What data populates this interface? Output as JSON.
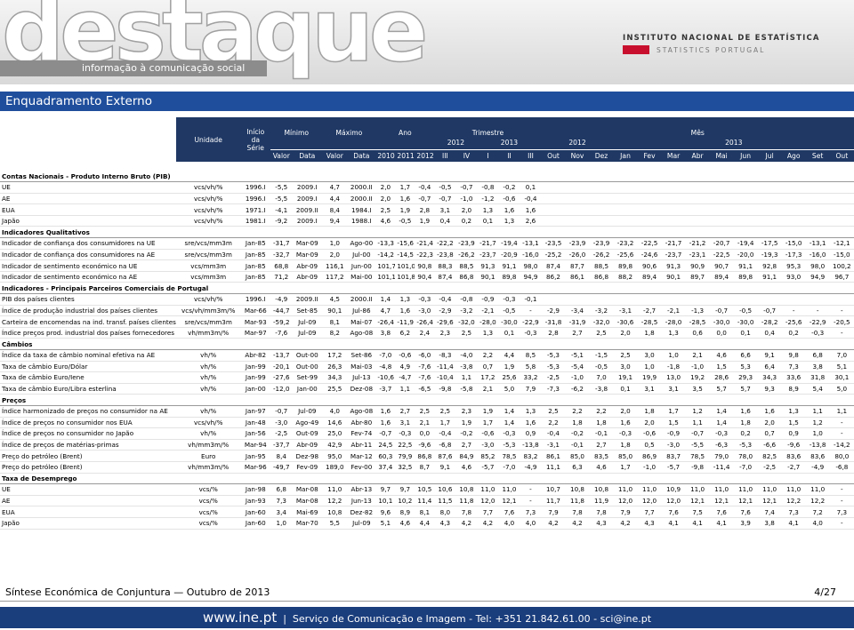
{
  "header": {
    "logo": "destaque",
    "tagline": "informação à comunicação social",
    "institute": "INSTITUTO NACIONAL DE ESTATÍSTICA",
    "institute_en": "STATISTICS PORTUGAL"
  },
  "title": "Enquadramento Externo",
  "table": {
    "head": {
      "unit": "Unidade",
      "start": "Início da Série",
      "min": "Mínimo",
      "max": "Máximo",
      "year": "Ano",
      "quarter": "Trimestre",
      "month": "Mês",
      "quarter_years": [
        "2012",
        "2013"
      ],
      "month_years": [
        "2012",
        "2013"
      ],
      "sub": [
        "Valor",
        "Data",
        "Valor",
        "Data",
        "2010",
        "2011",
        "2012",
        "III",
        "IV",
        "I",
        "II",
        "III",
        "Out",
        "Nov",
        "Dez",
        "Jan",
        "Fev",
        "Mar",
        "Abr",
        "Mai",
        "Jun",
        "Jul",
        "Ago",
        "Set",
        "Out"
      ]
    },
    "sections": [
      {
        "title": "Contas Nacionais - Produto Interno Bruto (PIB)",
        "rows": [
          [
            "UE",
            "vcs/vh/%",
            "1996.I",
            "-5,5",
            "2009.I",
            "4,7",
            "2000.II",
            "2,0",
            "1,7",
            "-0,4",
            "-0,5",
            "-0,7",
            "-0,8",
            "-0,2",
            "0,1"
          ],
          [
            "AE",
            "vcs/vh/%",
            "1996.I",
            "-5,5",
            "2009.I",
            "4,4",
            "2000.II",
            "2,0",
            "1,6",
            "-0,7",
            "-0,7",
            "-1,0",
            "-1,2",
            "-0,6",
            "-0,4"
          ],
          [
            "EUA",
            "vcs/vh/%",
            "1971.I",
            "-4,1",
            "2009.II",
            "8,4",
            "1984.I",
            "2,5",
            "1,9",
            "2,8",
            "3,1",
            "2,0",
            "1,3",
            "1,6",
            "1,6"
          ],
          [
            "Japão",
            "vcs/vh/%",
            "1981.I",
            "-9,2",
            "2009.I",
            "9,4",
            "1988.I",
            "4,6",
            "-0,5",
            "1,9",
            "0,4",
            "0,2",
            "0,1",
            "1,3",
            "2,6"
          ]
        ]
      },
      {
        "title": "Indicadores Qualitativos",
        "rows": [
          [
            "Indicador de confiança dos consumidores na UE",
            "sre/vcs/mm3m",
            "Jan-85",
            "-31,7",
            "Mar-09",
            "1,0",
            "Ago-00",
            "-13,3",
            "-15,6",
            "-21,4",
            "-22,2",
            "-23,9",
            "-21,7",
            "-19,4",
            "-13,1",
            "-23,5",
            "-23,9",
            "-23,9",
            "-23,2",
            "-22,5",
            "-21,7",
            "-21,2",
            "-20,7",
            "-19,4",
            "-17,5",
            "-15,0",
            "-13,1",
            "-12,1"
          ],
          [
            "Indicador de confiança dos consumidores na AE",
            "sre/vcs/mm3m",
            "Jan-85",
            "-32,7",
            "Mar-09",
            "2,0",
            "Jul-00",
            "-14,2",
            "-14,5",
            "-22,3",
            "-23,8",
            "-26,2",
            "-23,7",
            "-20,9",
            "-16,0",
            "-25,2",
            "-26,0",
            "-26,2",
            "-25,6",
            "-24,6",
            "-23,7",
            "-23,1",
            "-22,5",
            "-20,0",
            "-19,3",
            "-17,3",
            "-16,0",
            "-15,0"
          ],
          [
            "Indicador de sentimento económico na UE",
            "vcs/mm3m",
            "Jan-85",
            "68,8",
            "Abr-09",
            "116,1",
            "Jun-00",
            "101,7",
            "101,0",
            "90,8",
            "88,3",
            "88,5",
            "91,3",
            "91,1",
            "98,0",
            "87,4",
            "87,7",
            "88,5",
            "89,8",
            "90,6",
            "91,3",
            "90,9",
            "90,7",
            "91,1",
            "92,8",
            "95,3",
            "98,0",
            "100,2"
          ],
          [
            "Indicador de sentimento económico na AE",
            "vcs/mm3m",
            "Jan-85",
            "71,2",
            "Abr-09",
            "117,2",
            "Mai-00",
            "101,1",
            "101,8",
            "90,4",
            "87,4",
            "86,8",
            "90,1",
            "89,8",
            "94,9",
            "86,2",
            "86,1",
            "86,8",
            "88,2",
            "89,4",
            "90,1",
            "89,7",
            "89,4",
            "89,8",
            "91,1",
            "93,0",
            "94,9",
            "96,7"
          ]
        ]
      },
      {
        "title": "Indicadores - Principais Parceiros Comerciais de Portugal",
        "rows": [
          [
            "PIB dos países clientes",
            "vcs/vh/%",
            "1996.I",
            "-4,9",
            "2009.II",
            "4,5",
            "2000.II",
            "1,4",
            "1,3",
            "-0,3",
            "-0,4",
            "-0,8",
            "-0,9",
            "-0,3",
            "-0,1"
          ],
          [
            "Índice de produção industrial dos países clientes",
            "vcs/vh/mm3m/%",
            "Mar-66",
            "-44,7",
            "Set-85",
            "90,1",
            "Jul-86",
            "4,7",
            "1,6",
            "-3,0",
            "-2,9",
            "-3,2",
            "-2,1",
            "-0,5",
            "-",
            "-2,9",
            "-3,4",
            "-3,2",
            "-3,1",
            "-2,7",
            "-2,1",
            "-1,3",
            "-0,7",
            "-0,5",
            "-0,7",
            "-",
            "-",
            "-"
          ],
          [
            "Carteira de encomendas na ind. transf. países clientes",
            "sre/vcs/mm3m",
            "Mar-93",
            "-59,2",
            "Jul-09",
            "8,1",
            "Mai-07",
            "-26,4",
            "-11,9",
            "-26,4",
            "-29,6",
            "-32,0",
            "-28,0",
            "-30,0",
            "-22,9",
            "-31,8",
            "-31,9",
            "-32,0",
            "-30,6",
            "-28,5",
            "-28,0",
            "-28,5",
            "-30,0",
            "-30,0",
            "-28,2",
            "-25,6",
            "-22,9",
            "-20,5"
          ],
          [
            "Índice preços prod. industrial dos países fornecedores",
            "vh/mm3m/%",
            "Mar-97",
            "-7,6",
            "Jul-09",
            "8,2",
            "Ago-08",
            "3,8",
            "6,2",
            "2,4",
            "2,3",
            "2,5",
            "1,3",
            "0,1",
            "-0,3",
            "2,8",
            "2,7",
            "2,5",
            "2,0",
            "1,8",
            "1,3",
            "0,6",
            "0,0",
            "0,1",
            "0,4",
            "0,2",
            "-0,3",
            "-"
          ]
        ]
      },
      {
        "title": "Câmbios",
        "rows": [
          [
            "Índice da taxa de câmbio nominal efetiva na AE",
            "vh/%",
            "Abr-82",
            "-13,7",
            "Out-00",
            "17,2",
            "Set-86",
            "-7,0",
            "-0,6",
            "-6,0",
            "-8,3",
            "-4,0",
            "2,2",
            "4,4",
            "8,5",
            "-5,3",
            "-5,1",
            "-1,5",
            "2,5",
            "3,0",
            "1,0",
            "2,1",
            "4,6",
            "6,6",
            "9,1",
            "9,8",
            "6,8",
            "7,0"
          ],
          [
            "Taxa de câmbio Euro/Dólar",
            "vh/%",
            "Jan-99",
            "-20,1",
            "Out-00",
            "26,3",
            "Mai-03",
            "-4,8",
            "4,9",
            "-7,6",
            "-11,4",
            "-3,8",
            "0,7",
            "1,9",
            "5,8",
            "-5,3",
            "-5,4",
            "-0,5",
            "3,0",
            "1,0",
            "-1,8",
            "-1,0",
            "1,5",
            "5,3",
            "6,4",
            "7,3",
            "3,8",
            "5,1"
          ],
          [
            "Taxa de câmbio Euro/Iene",
            "vh/%",
            "Jan-99",
            "-27,6",
            "Set-99",
            "34,3",
            "Jul-13",
            "-10,6",
            "-4,7",
            "-7,6",
            "-10,4",
            "1,1",
            "17,2",
            "25,6",
            "33,2",
            "-2,5",
            "-1,0",
            "7,0",
            "19,1",
            "19,9",
            "13,0",
            "19,2",
            "28,6",
            "29,3",
            "34,3",
            "33,6",
            "31,8",
            "30,1"
          ],
          [
            "Taxa de câmbio Euro/Libra esterlina",
            "vh/%",
            "Jan-00",
            "-12,0",
            "Jan-00",
            "25,5",
            "Dez-08",
            "-3,7",
            "1,1",
            "-6,5",
            "-9,8",
            "-5,8",
            "2,1",
            "5,0",
            "7,9",
            "-7,3",
            "-6,2",
            "-3,8",
            "0,1",
            "3,1",
            "3,1",
            "3,5",
            "5,7",
            "5,7",
            "9,3",
            "8,9",
            "5,4",
            "5,0"
          ]
        ]
      },
      {
        "title": "Preços",
        "rows": [
          [
            "Índice harmonizado de preços no consumidor na AE",
            "vh/%",
            "Jan-97",
            "-0,7",
            "Jul-09",
            "4,0",
            "Ago-08",
            "1,6",
            "2,7",
            "2,5",
            "2,5",
            "2,3",
            "1,9",
            "1,4",
            "1,3",
            "2,5",
            "2,2",
            "2,2",
            "2,0",
            "1,8",
            "1,7",
            "1,2",
            "1,4",
            "1,6",
            "1,6",
            "1,3",
            "1,1",
            "1,1"
          ],
          [
            "Índice de preços no consumidor nos EUA",
            "vcs/vh/%",
            "Jan-48",
            "-3,0",
            "Ago-49",
            "14,6",
            "Abr-80",
            "1,6",
            "3,1",
            "2,1",
            "1,7",
            "1,9",
            "1,7",
            "1,4",
            "1,6",
            "2,2",
            "1,8",
            "1,8",
            "1,6",
            "2,0",
            "1,5",
            "1,1",
            "1,4",
            "1,8",
            "2,0",
            "1,5",
            "1,2",
            "-"
          ],
          [
            "Índice de preços no consumidor no Japão",
            "vh/%",
            "Jan-56",
            "-2,5",
            "Out-09",
            "25,0",
            "Fev-74",
            "-0,7",
            "-0,3",
            "0,0",
            "-0,4",
            "-0,2",
            "-0,6",
            "-0,3",
            "0,9",
            "-0,4",
            "-0,2",
            "-0,1",
            "-0,3",
            "-0,6",
            "-0,9",
            "-0,7",
            "-0,3",
            "0,2",
            "0,7",
            "0,9",
            "1,0",
            "-"
          ],
          [
            "Índice de preços de matérias-primas",
            "vh/mm3m/%",
            "Mar-94",
            "-37,7",
            "Abr-09",
            "42,9",
            "Abr-11",
            "24,5",
            "22,5",
            "-9,6",
            "-6,8",
            "2,7",
            "-3,0",
            "-5,3",
            "-13,8",
            "-3,1",
            "-0,1",
            "2,7",
            "1,8",
            "0,5",
            "-3,0",
            "-5,5",
            "-6,3",
            "-5,3",
            "-6,6",
            "-9,6",
            "-13,8",
            "-14,2"
          ],
          [
            "Preço do petróleo (Brent)",
            "Euro",
            "Jan-95",
            "8,4",
            "Dez-98",
            "95,0",
            "Mar-12",
            "60,3",
            "79,9",
            "86,8",
            "87,6",
            "84,9",
            "85,2",
            "78,5",
            "83,2",
            "86,1",
            "85,0",
            "83,5",
            "85,0",
            "86,9",
            "83,7",
            "78,5",
            "79,0",
            "78,0",
            "82,5",
            "83,6",
            "83,6",
            "80,0"
          ],
          [
            "Preço do petróleo (Brent)",
            "vh/mm3m/%",
            "Mar-96",
            "-49,7",
            "Fev-09",
            "189,0",
            "Fev-00",
            "37,4",
            "32,5",
            "8,7",
            "9,1",
            "4,6",
            "-5,7",
            "-7,0",
            "-4,9",
            "11,1",
            "6,3",
            "4,6",
            "1,7",
            "-1,0",
            "-5,7",
            "-9,8",
            "-11,4",
            "-7,0",
            "-2,5",
            "-2,7",
            "-4,9",
            "-6,8"
          ]
        ]
      },
      {
        "title": "Taxa de Desemprego",
        "rows": [
          [
            "UE",
            "vcs/%",
            "Jan-98",
            "6,8",
            "Mar-08",
            "11,0",
            "Abr-13",
            "9,7",
            "9,7",
            "10,5",
            "10,6",
            "10,8",
            "11,0",
            "11,0",
            "-",
            "10,7",
            "10,8",
            "10,8",
            "11,0",
            "11,0",
            "10,9",
            "11,0",
            "11,0",
            "11,0",
            "11,0",
            "11,0",
            "11,0",
            "-"
          ],
          [
            "AE",
            "vcs/%",
            "Jan-93",
            "7,3",
            "Mar-08",
            "12,2",
            "Jun-13",
            "10,1",
            "10,2",
            "11,4",
            "11,5",
            "11,8",
            "12,0",
            "12,1",
            "-",
            "11,7",
            "11,8",
            "11,9",
            "12,0",
            "12,0",
            "12,0",
            "12,1",
            "12,1",
            "12,1",
            "12,1",
            "12,2",
            "12,2",
            "-"
          ],
          [
            "EUA",
            "vcs/%",
            "Jan-60",
            "3,4",
            "Mai-69",
            "10,8",
            "Dez-82",
            "9,6",
            "8,9",
            "8,1",
            "8,0",
            "7,8",
            "7,7",
            "7,6",
            "7,3",
            "7,9",
            "7,8",
            "7,8",
            "7,9",
            "7,7",
            "7,6",
            "7,5",
            "7,6",
            "7,6",
            "7,4",
            "7,3",
            "7,2",
            "7,3"
          ],
          [
            "Japão",
            "vcs/%",
            "Jan-60",
            "1,0",
            "Mar-70",
            "5,5",
            "Jul-09",
            "5,1",
            "4,6",
            "4,4",
            "4,3",
            "4,2",
            "4,2",
            "4,0",
            "4,0",
            "4,2",
            "4,2",
            "4,3",
            "4,2",
            "4,3",
            "4,1",
            "4,1",
            "4,1",
            "3,9",
            "3,8",
            "4,1",
            "4,0",
            "-"
          ]
        ]
      }
    ]
  },
  "footer": {
    "publication": "Síntese Económica de Conjuntura — Outubro de 2013",
    "page": "4/27",
    "site": "www.ine.pt",
    "contact": "Serviço de Comunicação e Imagem - Tel: +351 21.842.61.00 - sci@ine.pt"
  }
}
